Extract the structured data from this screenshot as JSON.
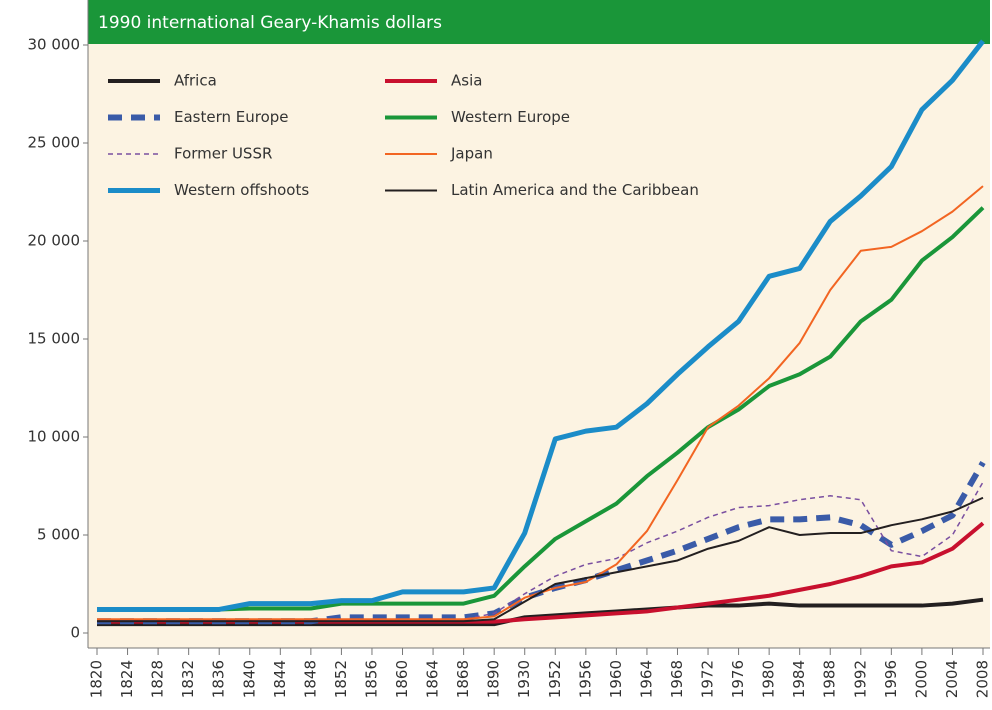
{
  "chart_data": {
    "type": "line",
    "title": "1990 international Geary-Khamis dollars",
    "categories": [
      "1820",
      "1824",
      "1828",
      "1832",
      "1836",
      "1840",
      "1844",
      "1848",
      "1852",
      "1856",
      "1860",
      "1864",
      "1868",
      "1890",
      "1930",
      "1952",
      "1956",
      "1960",
      "1964",
      "1968",
      "1972",
      "1976",
      "1980",
      "1984",
      "1988",
      "1992",
      "1996",
      "2000",
      "2004",
      "2008"
    ],
    "ylim": [
      0,
      30000
    ],
    "yticks": [
      0,
      {
        "value": 5000,
        "label": "5 000"
      },
      {
        "value": 10000,
        "label": "10 000"
      },
      {
        "value": 15000,
        "label": "15 000"
      },
      {
        "value": 20000,
        "label": "20 000"
      },
      {
        "value": 25000,
        "label": "25 000"
      },
      {
        "value": 30000,
        "label": "30 000"
      }
    ],
    "series": [
      {
        "name": "Africa",
        "color": "#231f20",
        "linewidth": 4,
        "dash": "solid",
        "values": [
          450,
          450,
          450,
          450,
          450,
          450,
          450,
          450,
          450,
          450,
          450,
          450,
          450,
          450,
          800,
          900,
          1000,
          1100,
          1200,
          1300,
          1400,
          1400,
          1500,
          1400,
          1400,
          1400,
          1400,
          1400,
          1500,
          1700
        ]
      },
      {
        "name": "Asia",
        "color": "#c8102e",
        "linewidth": 4,
        "dash": "solid",
        "values": [
          580,
          580,
          580,
          580,
          580,
          580,
          580,
          580,
          580,
          580,
          580,
          580,
          580,
          580,
          700,
          800,
          900,
          1000,
          1100,
          1300,
          1500,
          1700,
          1900,
          2200,
          2500,
          2900,
          3400,
          3600,
          4300,
          5600
        ]
      },
      {
        "name": "Eastern Europe",
        "color": "#3a5ba8",
        "linewidth": 6,
        "dash": "dashed",
        "values": [
          600,
          600,
          600,
          600,
          600,
          600,
          600,
          600,
          800,
          800,
          800,
          800,
          800,
          1000,
          1800,
          2300,
          2700,
          3200,
          3700,
          4200,
          4800,
          5400,
          5800,
          5800,
          5900,
          5500,
          4500,
          5200,
          6000,
          8700
        ]
      },
      {
        "name": "Western Europe",
        "color": "#1a9639",
        "linewidth": 4,
        "dash": "solid",
        "values": [
          1200,
          1200,
          1200,
          1200,
          1200,
          1250,
          1250,
          1250,
          1500,
          1500,
          1500,
          1500,
          1500,
          1900,
          3400,
          4800,
          5700,
          6600,
          8000,
          9200,
          10500,
          11400,
          12600,
          13200,
          14100,
          15900,
          17000,
          19000,
          20200,
          21700
        ]
      },
      {
        "name": "Former USSR",
        "color": "#7a4fa0",
        "linewidth": 1.5,
        "dash": "dotted",
        "values": [
          700,
          700,
          700,
          700,
          700,
          700,
          700,
          700,
          700,
          700,
          700,
          700,
          700,
          1000,
          2000,
          2900,
          3500,
          3800,
          4600,
          5200,
          5900,
          6400,
          6500,
          6800,
          7000,
          6800,
          4200,
          3900,
          5000,
          7700
        ]
      },
      {
        "name": "Japan",
        "color": "#f26522",
        "linewidth": 2,
        "dash": "solid",
        "values": [
          700,
          700,
          700,
          700,
          700,
          700,
          700,
          700,
          700,
          700,
          700,
          700,
          700,
          850,
          1800,
          2300,
          2600,
          3500,
          5200,
          7800,
          10500,
          11600,
          13000,
          14800,
          17500,
          19500,
          19700,
          20500,
          21500,
          22800
        ]
      },
      {
        "name": "Western offshoots",
        "color": "#1b8cc8",
        "linewidth": 5,
        "dash": "solid",
        "values": [
          1200,
          1200,
          1200,
          1200,
          1200,
          1500,
          1500,
          1500,
          1650,
          1650,
          2100,
          2100,
          2100,
          2300,
          5100,
          9900,
          10300,
          10500,
          11700,
          13200,
          14600,
          15900,
          18200,
          18600,
          21000,
          22300,
          23800,
          26700,
          28200,
          30200
        ]
      },
      {
        "name": "Latin America and the Caribbean",
        "color": "#231f20",
        "linewidth": 2,
        "dash": "solid",
        "values": [
          600,
          600,
          600,
          600,
          600,
          600,
          600,
          600,
          600,
          600,
          600,
          600,
          600,
          700,
          1600,
          2500,
          2800,
          3100,
          3400,
          3700,
          4300,
          4700,
          5400,
          5000,
          5100,
          5100,
          5500,
          5800,
          6200,
          6900
        ]
      }
    ]
  }
}
